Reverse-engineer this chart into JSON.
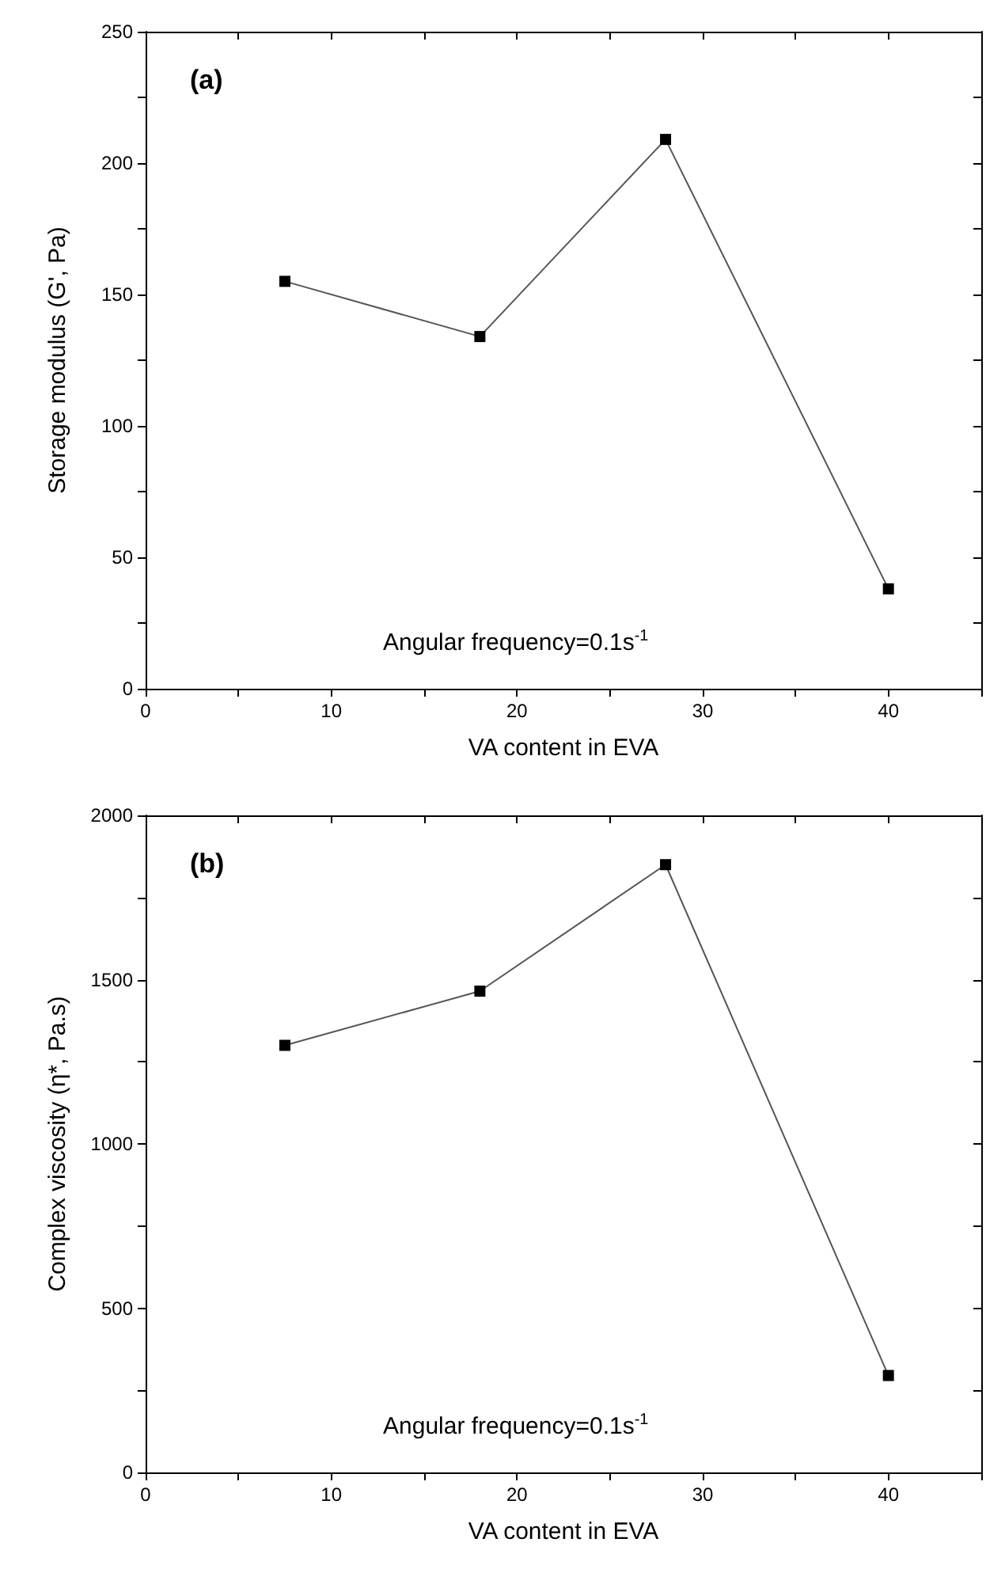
{
  "chart_data": [
    {
      "type": "line",
      "xlabel": "VA content in EVA",
      "ylabel": "Storage modulus (G', Pa)",
      "annotations": [
        "(a)",
        "Angular frequency=0.1s$^{-1}$"
      ],
      "x": [
        7.5,
        18,
        28,
        40
      ],
      "series": [
        {
          "color": "#000000",
          "values": [
            155,
            134,
            209,
            38
          ]
        }
      ],
      "xlim": [
        0,
        45
      ],
      "xticks": [
        0,
        {
          "value": 5,
          "label": null
        },
        10,
        {
          "value": 15,
          "label": null
        },
        20,
        {
          "value": 25,
          "label": null
        },
        30,
        {
          "value": 35,
          "label": null
        },
        40,
        {
          "value": 45,
          "label": null
        }
      ],
      "ylim": [
        0,
        250
      ],
      "yticks": [
        0,
        {
          "value": 25,
          "label": null
        },
        50,
        {
          "value": 75,
          "label": null
        },
        100,
        {
          "value": 125,
          "label": null
        },
        150,
        {
          "value": 175,
          "label": null
        },
        200,
        {
          "value": 225,
          "label": null
        },
        250
      ],
      "marker": "square",
      "line_style": "solid"
    },
    {
      "type": "line",
      "xlabel": "VA content in EVA",
      "ylabel": "Complex viscosity (η*, Pa.s)",
      "annotations": [
        "(b)",
        "Angular frequency=0.1s$^{-1}$"
      ],
      "x": [
        7.5,
        18,
        28,
        40
      ],
      "series": [
        {
          "color": "#000000",
          "values": [
            1300,
            1465,
            1850,
            295
          ]
        }
      ],
      "xlim": [
        0,
        45
      ],
      "xticks": [
        0,
        {
          "value": 5,
          "label": null
        },
        10,
        {
          "value": 15,
          "label": null
        },
        20,
        {
          "value": 25,
          "label": null
        },
        30,
        {
          "value": 35,
          "label": null
        },
        40,
        {
          "value": 45,
          "label": null
        }
      ],
      "ylim": [
        0,
        2000
      ],
      "yticks": [
        0,
        {
          "value": 250,
          "label": null
        },
        500,
        {
          "value": 750,
          "label": null
        },
        1000,
        {
          "value": 1250,
          "label": null
        },
        1500,
        {
          "value": 1750,
          "label": null
        },
        2000
      ],
      "marker": "square",
      "line_style": "solid"
    }
  ]
}
